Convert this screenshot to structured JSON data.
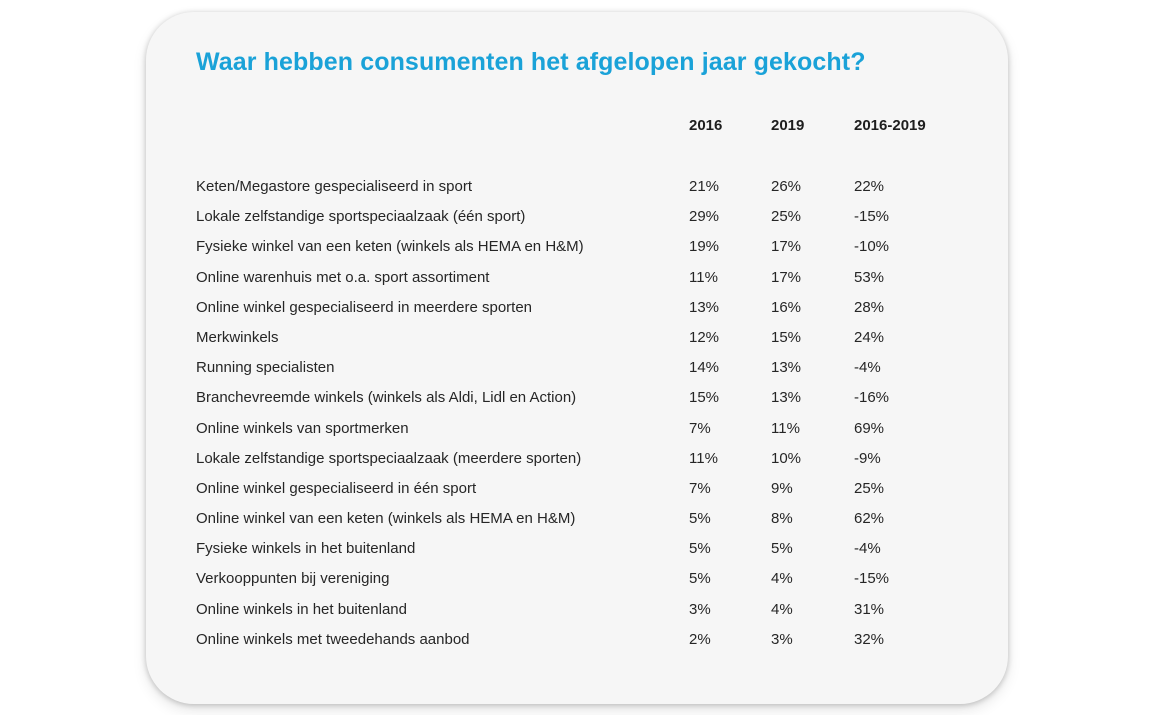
{
  "title": "Waar hebben consumenten het afgelopen jaar gekocht?",
  "columns": [
    "2016",
    "2019",
    "2016-2019"
  ],
  "rows": [
    {
      "label": "Keten/Megastore gespecialiseerd in sport",
      "y2016": "21%",
      "y2019": "26%",
      "change": "22%"
    },
    {
      "label": "Lokale zelfstandige sportspeciaalzaak (één sport)",
      "y2016": "29%",
      "y2019": "25%",
      "change": "-15%"
    },
    {
      "label": "Fysieke winkel van een keten (winkels als HEMA en H&M)",
      "y2016": "19%",
      "y2019": "17%",
      "change": "-10%"
    },
    {
      "label": "Online warenhuis met o.a. sport assortiment",
      "y2016": "11%",
      "y2019": "17%",
      "change": "53%"
    },
    {
      "label": "Online winkel gespecialiseerd in meerdere sporten",
      "y2016": "13%",
      "y2019": "16%",
      "change": "28%"
    },
    {
      "label": "Merkwinkels",
      "y2016": "12%",
      "y2019": "15%",
      "change": "24%"
    },
    {
      "label": "Running specialisten",
      "y2016": "14%",
      "y2019": "13%",
      "change": "-4%"
    },
    {
      "label": "Branchevreemde winkels (winkels als Aldi, Lidl en Action)",
      "y2016": "15%",
      "y2019": "13%",
      "change": "-16%"
    },
    {
      "label": "Online winkels van sportmerken",
      "y2016": "7%",
      "y2019": "11%",
      "change": "69%"
    },
    {
      "label": "Lokale zelfstandige sportspeciaalzaak (meerdere sporten)",
      "y2016": "11%",
      "y2019": "10%",
      "change": "-9%"
    },
    {
      "label": "Online winkel gespecialiseerd in één sport",
      "y2016": "7%",
      "y2019": "9%",
      "change": "25%"
    },
    {
      "label": "Online winkel van een keten (winkels als HEMA en H&M)",
      "y2016": "5%",
      "y2019": "8%",
      "change": "62%"
    },
    {
      "label": "Fysieke winkels in het buitenland",
      "y2016": "5%",
      "y2019": "5%",
      "change": "-4%"
    },
    {
      "label": "Verkooppunten bij vereniging",
      "y2016": "5%",
      "y2019": "4%",
      "change": "-15%"
    },
    {
      "label": "Online winkels in het buitenland",
      "y2016": "3%",
      "y2019": "4%",
      "change": "31%"
    },
    {
      "label": "Online winkels met tweedehands aanbod",
      "y2016": "2%",
      "y2019": "3%",
      "change": "32%"
    }
  ]
}
